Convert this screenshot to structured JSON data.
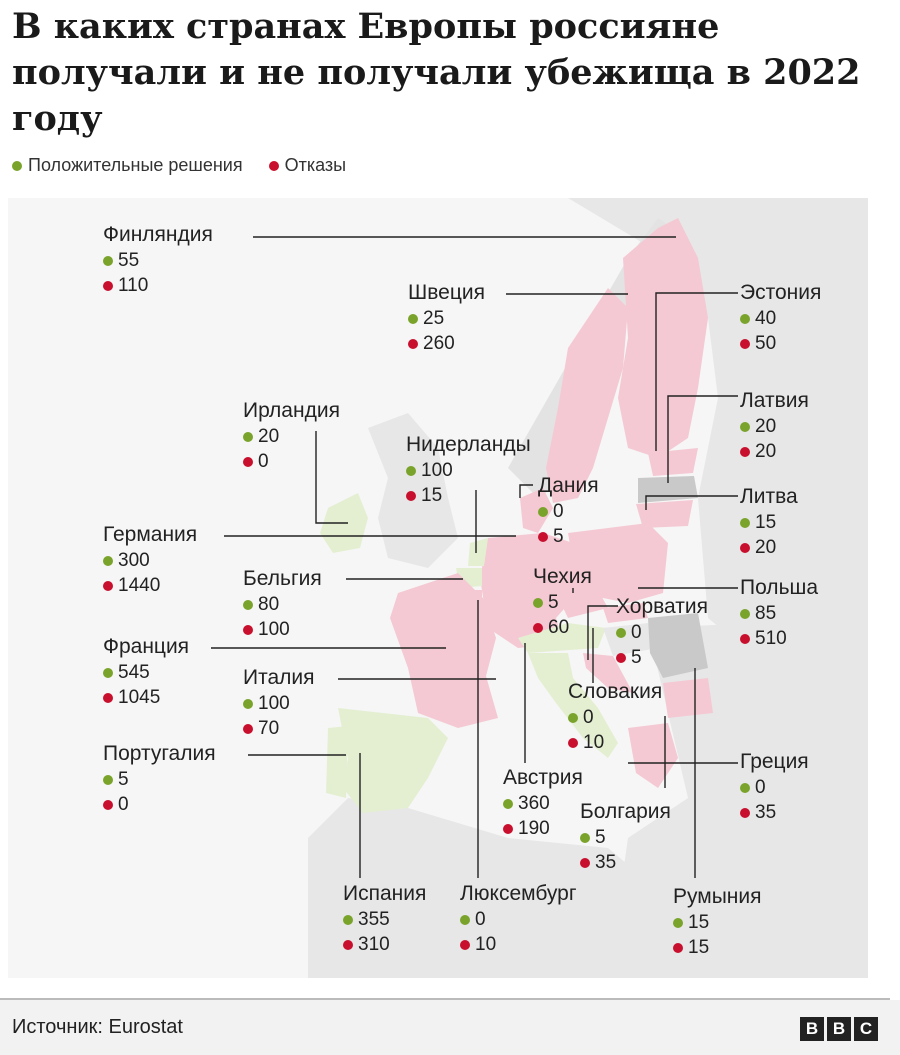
{
  "title": "В каких странах Европы россияне получали и не получали убежища в 2022 году",
  "legend": {
    "positive": "Положительные решения",
    "refusals": "Отказы"
  },
  "colors": {
    "positive": "#7aa32b",
    "refusals": "#c8102e",
    "highlight": "#f4c9d3",
    "gray_country": "#c9c9c9",
    "green_land": "#e4efd2",
    "land": "#e7e7e7",
    "sea": "#f6f6f6"
  },
  "countries": [
    {
      "name": "Финляндия",
      "positive": "55",
      "refusals": "110"
    },
    {
      "name": "Швеция",
      "positive": "25",
      "refusals": "260"
    },
    {
      "name": "Эстония",
      "positive": "40",
      "refusals": "50"
    },
    {
      "name": "Ирландия",
      "positive": "20",
      "refusals": "0"
    },
    {
      "name": "Латвия",
      "positive": "20",
      "refusals": "20"
    },
    {
      "name": "Нидерланды",
      "positive": "100",
      "refusals": "15"
    },
    {
      "name": "Дания",
      "positive": "0",
      "refusals": "5"
    },
    {
      "name": "Литва",
      "positive": "15",
      "refusals": "20"
    },
    {
      "name": "Германия",
      "positive": "300",
      "refusals": "1440"
    },
    {
      "name": "Бельгия",
      "positive": "80",
      "refusals": "100"
    },
    {
      "name": "Чехия",
      "positive": "5",
      "refusals": "60"
    },
    {
      "name": "Хорватия",
      "positive": "0",
      "refusals": "5"
    },
    {
      "name": "Польша",
      "positive": "85",
      "refusals": "510"
    },
    {
      "name": "Франция",
      "positive": "545",
      "refusals": "1045"
    },
    {
      "name": "Италия",
      "positive": "100",
      "refusals": "70"
    },
    {
      "name": "Словакия",
      "positive": "0",
      "refusals": "10"
    },
    {
      "name": "Португалия",
      "positive": "5",
      "refusals": "0"
    },
    {
      "name": "Австрия",
      "positive": "360",
      "refusals": "190"
    },
    {
      "name": "Греция",
      "positive": "0",
      "refusals": "35"
    },
    {
      "name": "Болгария",
      "positive": "5",
      "refusals": "35"
    },
    {
      "name": "Испания",
      "positive": "355",
      "refusals": "310"
    },
    {
      "name": "Люксембург",
      "positive": "0",
      "refusals": "10"
    },
    {
      "name": "Румыния",
      "positive": "15",
      "refusals": "15"
    }
  ],
  "footer": {
    "source": "Источник: Eurostat",
    "logo_letters": [
      "B",
      "B",
      "C"
    ]
  }
}
